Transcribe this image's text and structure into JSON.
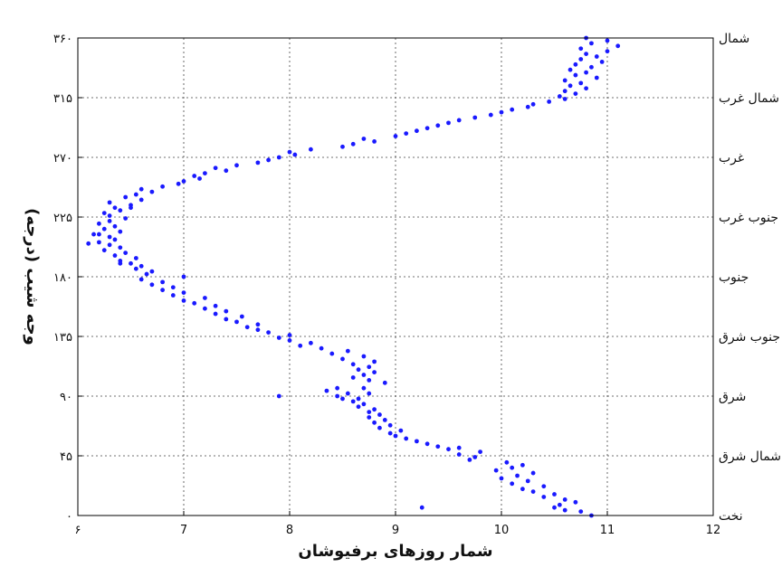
{
  "chart_data": {
    "type": "scatter",
    "xlabel": "شمار روزهای برفیوشان",
    "ylabel": "وجه شیب (درجه)",
    "xlim": [
      6,
      12
    ],
    "ylim": [
      0,
      360
    ],
    "grid": true,
    "point_color": "#1a1aff",
    "x_tick_values": [
      6,
      7,
      8,
      9,
      10,
      11,
      12
    ],
    "x_tick_labels": [
      "۶",
      "7",
      "8",
      "9",
      "10",
      "11",
      "12"
    ],
    "y_tick_values": [
      0,
      45,
      90,
      135,
      180,
      225,
      270,
      315,
      360
    ],
    "y_tick_labels": [
      "۰",
      "۴۵",
      "۹۰",
      "۱۳۵",
      "۱۸۰",
      "۲۲۵",
      "۲۷۰",
      "۳۱۵",
      "۳۶۰"
    ],
    "direction_labels": [
      "نخت",
      "شمال شرق",
      "شرق",
      "جنوب شرق",
      "جنوب",
      "جنوب غرب",
      "غرب",
      "شمال غرب",
      "شمال"
    ],
    "points": [
      [
        10.85,
        0
      ],
      [
        10.75,
        3
      ],
      [
        10.6,
        4
      ],
      [
        10.5,
        6
      ],
      [
        10.55,
        8
      ],
      [
        10.7,
        10
      ],
      [
        10.6,
        12
      ],
      [
        10.4,
        14
      ],
      [
        10.5,
        16
      ],
      [
        10.3,
        18
      ],
      [
        10.2,
        20
      ],
      [
        10.4,
        22
      ],
      [
        10.1,
        24
      ],
      [
        10.25,
        26
      ],
      [
        10.0,
        28
      ],
      [
        10.15,
        30
      ],
      [
        10.3,
        32
      ],
      [
        9.95,
        34
      ],
      [
        10.1,
        36
      ],
      [
        10.2,
        38
      ],
      [
        10.05,
        40
      ],
      [
        9.7,
        42
      ],
      [
        9.75,
        44
      ],
      [
        9.6,
        46
      ],
      [
        9.8,
        48
      ],
      [
        9.5,
        50
      ],
      [
        9.4,
        52
      ],
      [
        9.6,
        51
      ],
      [
        9.3,
        54
      ],
      [
        9.2,
        56
      ],
      [
        9.1,
        58
      ],
      [
        9.0,
        60
      ],
      [
        8.95,
        62
      ],
      [
        9.05,
        64
      ],
      [
        8.85,
        66
      ],
      [
        8.95,
        68
      ],
      [
        8.8,
        70
      ],
      [
        8.9,
        72
      ],
      [
        8.75,
        74
      ],
      [
        8.85,
        76
      ],
      [
        8.75,
        78
      ],
      [
        8.8,
        80
      ],
      [
        8.65,
        82
      ],
      [
        8.7,
        84
      ],
      [
        8.6,
        86
      ],
      [
        8.5,
        88
      ],
      [
        8.45,
        90
      ],
      [
        8.55,
        92
      ],
      [
        8.35,
        94
      ],
      [
        8.45,
        96
      ],
      [
        8.65,
        88
      ],
      [
        8.75,
        92
      ],
      [
        8.7,
        96
      ],
      [
        8.9,
        100
      ],
      [
        8.75,
        102
      ],
      [
        8.6,
        104
      ],
      [
        8.7,
        106
      ],
      [
        8.8,
        108
      ],
      [
        8.65,
        110
      ],
      [
        8.75,
        112
      ],
      [
        8.6,
        114
      ],
      [
        8.8,
        116
      ],
      [
        8.5,
        118
      ],
      [
        8.7,
        120
      ],
      [
        8.4,
        122
      ],
      [
        8.55,
        124
      ],
      [
        8.3,
        126
      ],
      [
        8.1,
        128
      ],
      [
        8.2,
        130
      ],
      [
        8.0,
        132
      ],
      [
        7.9,
        134
      ],
      [
        8.0,
        136
      ],
      [
        7.8,
        138
      ],
      [
        7.7,
        140
      ],
      [
        7.6,
        142
      ],
      [
        7.7,
        144
      ],
      [
        7.5,
        146
      ],
      [
        7.4,
        148
      ],
      [
        7.55,
        150
      ],
      [
        7.3,
        152
      ],
      [
        7.4,
        154
      ],
      [
        7.2,
        156
      ],
      [
        7.3,
        158
      ],
      [
        7.1,
        160
      ],
      [
        7.0,
        162
      ],
      [
        7.2,
        164
      ],
      [
        6.9,
        166
      ],
      [
        7.0,
        168
      ],
      [
        6.8,
        170
      ],
      [
        6.9,
        172
      ],
      [
        6.7,
        174
      ],
      [
        6.8,
        176
      ],
      [
        6.6,
        178
      ],
      [
        7.0,
        180
      ],
      [
        6.65,
        182
      ],
      [
        6.7,
        184
      ],
      [
        6.55,
        186
      ],
      [
        6.6,
        188
      ],
      [
        6.5,
        190
      ],
      [
        6.4,
        192
      ],
      [
        6.55,
        194
      ],
      [
        6.35,
        196
      ],
      [
        6.45,
        198
      ],
      [
        6.25,
        200
      ],
      [
        6.4,
        202
      ],
      [
        6.3,
        204
      ],
      [
        6.2,
        206
      ],
      [
        6.35,
        208
      ],
      [
        6.3,
        210
      ],
      [
        6.15,
        212
      ],
      [
        6.4,
        214
      ],
      [
        6.25,
        216
      ],
      [
        6.35,
        218
      ],
      [
        6.2,
        220
      ],
      [
        6.3,
        222
      ],
      [
        6.45,
        224
      ],
      [
        6.3,
        226
      ],
      [
        6.25,
        228
      ],
      [
        6.4,
        230
      ],
      [
        6.35,
        232
      ],
      [
        6.5,
        234
      ],
      [
        6.3,
        236
      ],
      [
        6.6,
        238
      ],
      [
        6.45,
        240
      ],
      [
        6.55,
        242
      ],
      [
        6.7,
        244
      ],
      [
        6.6,
        246
      ],
      [
        6.8,
        248
      ],
      [
        6.95,
        250
      ],
      [
        7.0,
        252
      ],
      [
        7.15,
        254
      ],
      [
        7.1,
        256
      ],
      [
        7.2,
        258
      ],
      [
        7.4,
        260
      ],
      [
        7.3,
        262
      ],
      [
        7.5,
        264
      ],
      [
        7.7,
        266
      ],
      [
        7.8,
        268
      ],
      [
        7.9,
        270
      ],
      [
        8.05,
        272
      ],
      [
        8.0,
        274
      ],
      [
        8.2,
        276
      ],
      [
        8.5,
        278
      ],
      [
        8.6,
        280
      ],
      [
        8.8,
        282
      ],
      [
        8.7,
        284
      ],
      [
        9.0,
        286
      ],
      [
        9.1,
        288
      ],
      [
        9.2,
        290
      ],
      [
        9.3,
        292
      ],
      [
        9.4,
        294
      ],
      [
        9.5,
        296
      ],
      [
        9.6,
        298
      ],
      [
        9.75,
        300
      ],
      [
        9.9,
        302
      ],
      [
        10.0,
        304
      ],
      [
        10.1,
        306
      ],
      [
        10.25,
        308
      ],
      [
        10.3,
        310
      ],
      [
        10.45,
        312
      ],
      [
        10.6,
        314
      ],
      [
        10.55,
        316
      ],
      [
        10.7,
        318
      ],
      [
        10.6,
        320
      ],
      [
        10.8,
        322
      ],
      [
        10.65,
        324
      ],
      [
        10.75,
        326
      ],
      [
        10.6,
        328
      ],
      [
        10.9,
        330
      ],
      [
        10.7,
        332
      ],
      [
        10.8,
        334
      ],
      [
        10.65,
        336
      ],
      [
        10.85,
        338
      ],
      [
        10.7,
        340
      ],
      [
        10.95,
        342
      ],
      [
        10.75,
        344
      ],
      [
        10.9,
        346
      ],
      [
        10.8,
        348
      ],
      [
        11.0,
        350
      ],
      [
        10.75,
        352
      ],
      [
        11.1,
        354
      ],
      [
        10.85,
        356
      ],
      [
        11.0,
        358
      ],
      [
        10.8,
        360
      ],
      [
        6.2,
        212
      ],
      [
        6.1,
        205
      ],
      [
        6.4,
        190
      ],
      [
        7.9,
        90
      ],
      [
        9.25,
        6
      ],
      [
        6.5,
        232
      ]
    ]
  }
}
